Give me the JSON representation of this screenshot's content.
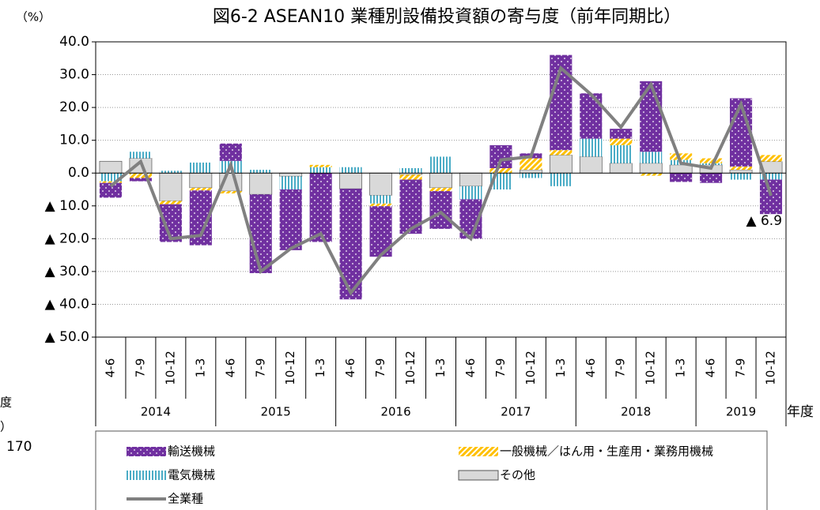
{
  "chart_data": {
    "type": "bar",
    "title": "図6-2 ASEAN10  業種別設備投資額の寄与度（前年同期比）",
    "y_label": "（%）",
    "x_label": "年度",
    "categories": [
      "4-6",
      "7-9",
      "10-12",
      "1-3",
      "4-6",
      "7-9",
      "10-12",
      "1-3",
      "4-6",
      "7-9",
      "10-12",
      "1-3",
      "4-6",
      "7-9",
      "10-12",
      "1-3",
      "4-6",
      "7-9",
      "10-12",
      "1-3",
      "4-6",
      "7-9",
      "10-12"
    ],
    "year_groups": [
      "2014",
      "2015",
      "2016",
      "2017",
      "2018",
      "2019"
    ],
    "series": [
      {
        "name": "輸送機械",
        "color": "#7030a0",
        "pattern": "dots",
        "values": [
          -4.5,
          -1,
          -11.5,
          -16.7,
          5.3,
          -24,
          -18.5,
          -21,
          -33.7,
          -15.4,
          -16.5,
          -11.5,
          -12,
          7,
          1.5,
          29,
          13.8,
          3,
          21.5,
          -2.7,
          -3,
          20.8,
          -10.5
        ]
      },
      {
        "name": "一般機械／はん用・生産用・業務用機械",
        "color": "#ffc000",
        "pattern": "hatch",
        "values": [
          -0.5,
          -1.5,
          -1,
          -0.8,
          -0.7,
          0,
          0,
          0.7,
          0,
          -0.8,
          -1.5,
          -1,
          0,
          1.5,
          3.5,
          1.5,
          0,
          2,
          -0.8,
          2,
          1.5,
          1,
          2
        ]
      },
      {
        "name": "電気機械",
        "color": "#4bacc6",
        "pattern": "stripes",
        "values": [
          -2.5,
          2,
          0.7,
          3.2,
          3.7,
          1,
          -4,
          1.8,
          1.8,
          -2.5,
          1.5,
          5,
          -4,
          -5,
          -1.5,
          -4,
          5.5,
          5.5,
          3.5,
          1.5,
          0.5,
          -2,
          -2
        ]
      },
      {
        "name": "その他",
        "color": "#d9d9d9",
        "pattern": "solid",
        "values": [
          3.6,
          4.5,
          -8.5,
          -4.5,
          -5.5,
          -6.5,
          -1,
          0,
          -4.8,
          -6.8,
          -0.5,
          -4.5,
          -4,
          0,
          1,
          5.5,
          5,
          3,
          3,
          2.5,
          2.5,
          1,
          3.5
        ]
      },
      {
        "name": "全業種",
        "color": "#808080",
        "type": "line",
        "values": [
          -4,
          3.5,
          -20,
          -19,
          2.5,
          -30,
          -23,
          -18.5,
          -36.5,
          -25,
          -17,
          -12,
          -20,
          4,
          5,
          32,
          24,
          14,
          27,
          3,
          1.5,
          21,
          -6.9
        ],
        "value_labels": [
          null,
          null,
          null,
          null,
          null,
          null,
          null,
          null,
          null,
          null,
          null,
          null,
          null,
          null,
          null,
          null,
          null,
          null,
          null,
          null,
          null,
          null,
          "▲ 6.9"
        ]
      }
    ],
    "ylim": [
      -50,
      40
    ],
    "yticks": [
      {
        "value": 40,
        "label": "40.0"
      },
      {
        "value": 30,
        "label": "30.0"
      },
      {
        "value": 20,
        "label": "20.0"
      },
      {
        "value": 10,
        "label": "10.0"
      },
      {
        "value": 0,
        "label": "0.0"
      },
      {
        "value": -10,
        "label": "▲ 10.0"
      },
      {
        "value": -20,
        "label": "▲ 20.0"
      },
      {
        "value": -30,
        "label": "▲ 30.0"
      },
      {
        "value": -40,
        "label": "▲ 40.0"
      },
      {
        "value": -50,
        "label": "▲ 50.0"
      }
    ],
    "grid": true
  },
  "cropped_text": [
    "度",
    "）",
    "170"
  ]
}
